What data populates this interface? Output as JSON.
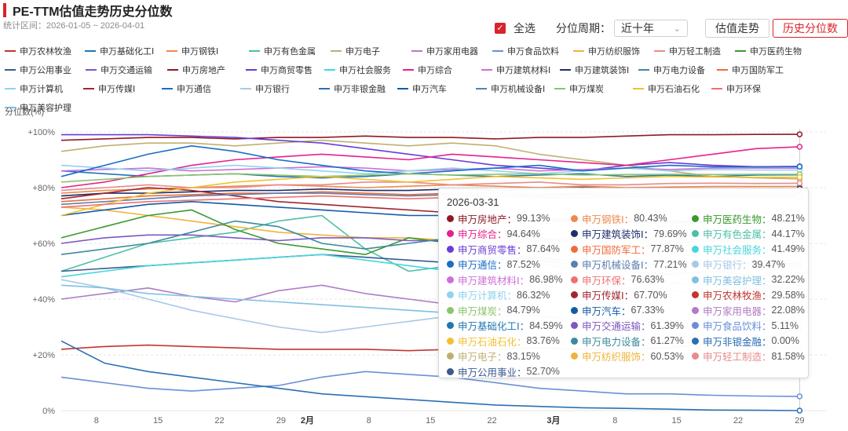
{
  "title": "PE-TTM估值走势历史分位数",
  "range_text": "统计区间：2026-01-05 ~ 2026-04-01",
  "controls": {
    "select_all_label": "全选",
    "period_label": "分位周期：",
    "period_value": "近十年",
    "tab_valuation": "估值走势",
    "tab_percentile": "历史分位数"
  },
  "tooltip_date": "2026-03-31",
  "chart_data": {
    "type": "line",
    "title": "PE-TTM估值走势历史分位数",
    "ylabel": "分位数(%)",
    "ylim": [
      0,
      100
    ],
    "yticks": [
      "0%",
      "+20%",
      "+40%",
      "+60%",
      "+80%",
      "+100%"
    ],
    "xlabels": [
      {
        "label": "8",
        "day": 4
      },
      {
        "label": "15",
        "day": 11
      },
      {
        "label": "22",
        "day": 18
      },
      {
        "label": "29",
        "day": 25
      },
      {
        "label": "2月",
        "day": 28,
        "bold": true
      },
      {
        "label": "8",
        "day": 35
      },
      {
        "label": "15",
        "day": 42
      },
      {
        "label": "22",
        "day": 49
      },
      {
        "label": "3月",
        "day": 56,
        "bold": true
      },
      {
        "label": "8",
        "day": 63
      },
      {
        "label": "15",
        "day": 70
      },
      {
        "label": "22",
        "day": 77
      },
      {
        "label": "29",
        "day": 84
      }
    ],
    "x_start": "2026-01-05",
    "x_end": "2026-04-01",
    "grid": true,
    "series": [
      {
        "name": "申万农林牧渔",
        "color": "#c23531",
        "values": [
          22,
          23,
          23.5,
          23,
          22.5,
          22,
          22,
          22,
          21.5,
          22,
          22,
          22.5,
          22,
          22,
          22.5,
          24,
          25,
          29.58
        ]
      },
      {
        "name": "申万基础化工Ⅰ",
        "color": "#1f77b4",
        "values": [
          86,
          85,
          84,
          84.5,
          85,
          84,
          83.5,
          84,
          85,
          84.5,
          84,
          84.5,
          85,
          84,
          84.5,
          84,
          84.5,
          84.59
        ]
      },
      {
        "name": "申万钢铁Ⅰ",
        "color": "#ee8a4b",
        "values": [
          78,
          79,
          79.5,
          80,
          80.5,
          81,
          80.5,
          80,
          80.5,
          81,
          80.5,
          80,
          80.5,
          80,
          80.2,
          80.4,
          80.4,
          80.43
        ]
      },
      {
        "name": "申万有色金属",
        "color": "#4dbfa8",
        "values": [
          50,
          55,
          60,
          62,
          64,
          68,
          70,
          58,
          50,
          52,
          55,
          53,
          50,
          47,
          46,
          45,
          44.5,
          44.17
        ]
      },
      {
        "name": "申万电子",
        "color": "#c0b070",
        "values": [
          93,
          95,
          96,
          96,
          95,
          96,
          97,
          96,
          95,
          96,
          95,
          92,
          90,
          88,
          86,
          84,
          83.5,
          83.15
        ]
      },
      {
        "name": "申万家用电器",
        "color": "#b07cc6",
        "values": [
          40,
          42,
          44,
          41,
          39,
          43,
          45,
          42,
          40,
          38,
          36,
          34,
          32,
          30,
          28,
          25,
          23,
          22.08
        ]
      },
      {
        "name": "申万食品饮料",
        "color": "#6a8fd8",
        "values": [
          12,
          10,
          8,
          7,
          8,
          9,
          12,
          14,
          13,
          12,
          10,
          8,
          7,
          6,
          6,
          5.5,
          5.2,
          5.11
        ]
      },
      {
        "name": "申万纺织服饰",
        "color": "#f0b43c",
        "values": [
          73,
          72,
          70,
          68,
          66,
          64,
          63,
          62,
          62,
          61,
          61,
          62,
          61,
          60,
          60.5,
          60.8,
          60.5,
          60.53
        ]
      },
      {
        "name": "申万轻工制造",
        "color": "#e78b8b",
        "values": [
          79,
          80,
          81,
          80,
          80,
          81,
          81,
          82,
          82,
          81,
          81.5,
          82,
          81,
          81,
          81.5,
          81.6,
          81.5,
          81.58
        ]
      },
      {
        "name": "申万医药生物",
        "color": "#3a9a2e",
        "values": [
          62,
          66,
          70,
          72,
          65,
          60,
          58,
          56,
          62,
          60,
          58,
          54,
          52,
          50,
          49,
          50,
          48.5,
          48.21
        ]
      },
      {
        "name": "申万公用事业",
        "color": "#3b5a8f",
        "values": [
          50,
          51,
          52,
          53,
          54,
          55,
          56,
          55,
          54,
          53,
          54,
          55,
          53,
          52,
          53,
          52.5,
          52.8,
          52.7
        ]
      },
      {
        "name": "申万交通运输",
        "color": "#7e57c2",
        "values": [
          60,
          62,
          63,
          63,
          62,
          61,
          62,
          62,
          61,
          61,
          60,
          61,
          62,
          61,
          61,
          61.5,
          61.3,
          61.39
        ]
      },
      {
        "name": "申万房地产",
        "color": "#8e1a24",
        "values": [
          97,
          97.5,
          98,
          98,
          97.5,
          98,
          98,
          98.5,
          98,
          98,
          97.5,
          98,
          98,
          98.5,
          99,
          99,
          99.1,
          99.13
        ]
      },
      {
        "name": "申万商贸零售",
        "color": "#6a3cd6",
        "values": [
          99,
          99,
          99,
          98.5,
          98,
          97,
          96,
          94,
          92,
          90,
          88,
          87,
          86,
          88,
          89,
          88,
          87.5,
          87.64
        ]
      },
      {
        "name": "申万社会服务",
        "color": "#45d6de",
        "values": [
          48,
          50,
          52,
          53,
          54,
          55,
          56,
          54,
          52,
          50,
          48,
          46,
          45,
          44,
          43,
          42,
          41.5,
          41.49
        ]
      },
      {
        "name": "申万综合",
        "color": "#e6218c",
        "values": [
          80,
          82,
          85,
          88,
          90,
          91,
          92,
          91,
          90,
          92,
          91,
          90,
          89,
          88,
          90,
          92,
          94,
          94.64
        ]
      },
      {
        "name": "申万建筑材料Ⅰ",
        "color": "#cf6fd8",
        "values": [
          86,
          86.5,
          87,
          86,
          86.5,
          87,
          87.5,
          87,
          86,
          86.5,
          87,
          86,
          86.5,
          87,
          86.5,
          87,
          87,
          86.98
        ]
      },
      {
        "name": "申万建筑装饰Ⅰ",
        "color": "#1e2f6b",
        "values": [
          77,
          78,
          78,
          78.5,
          79,
          79,
          79.5,
          79,
          79,
          79.5,
          79,
          79.5,
          80,
          79.5,
          79.8,
          79.6,
          79.7,
          79.69
        ]
      },
      {
        "name": "申万电力设备",
        "color": "#3d8a9e",
        "values": [
          56,
          58,
          60,
          64,
          68,
          66,
          60,
          58,
          60,
          62,
          64,
          62,
          60,
          58,
          60,
          61,
          61.2,
          61.27
        ]
      },
      {
        "name": "申万国防军工",
        "color": "#f06b3a",
        "values": [
          75,
          76,
          77,
          77.5,
          78,
          78,
          78.5,
          78,
          77.5,
          78,
          78,
          77.5,
          78,
          77.8,
          77.9,
          77.8,
          77.9,
          77.87
        ]
      },
      {
        "name": "申万计算机",
        "color": "#8fd3ee",
        "values": [
          88,
          87,
          86,
          87,
          88,
          87,
          86,
          85,
          86,
          87,
          86,
          85,
          86,
          87,
          86,
          86.5,
          86.3,
          86.32
        ]
      },
      {
        "name": "申万传媒Ⅰ",
        "color": "#a02630",
        "values": [
          76,
          78,
          80,
          79,
          77,
          75,
          74,
          73,
          72,
          71,
          70,
          69,
          68.5,
          68,
          68,
          67.8,
          67.7,
          67.7
        ]
      },
      {
        "name": "申万通信",
        "color": "#1a6dc8",
        "values": [
          84,
          88,
          92,
          95,
          93,
          90,
          88,
          86,
          85,
          86,
          87,
          88,
          86,
          87,
          88,
          87.5,
          87.5,
          87.52
        ]
      },
      {
        "name": "申万银行",
        "color": "#a8c8e8",
        "values": [
          47,
          44,
          40,
          36,
          33,
          30,
          28,
          30,
          32,
          34,
          36,
          37,
          38,
          39,
          39.5,
          39.4,
          39.5,
          39.47
        ]
      },
      {
        "name": "申万非银金融",
        "color": "#2a6fb5",
        "values": [
          25,
          17,
          14,
          12,
          10,
          8,
          6,
          5,
          4,
          3,
          2,
          1.5,
          1,
          0.8,
          0.5,
          0.2,
          0.1,
          0
        ]
      },
      {
        "name": "申万汽车",
        "color": "#135aa8",
        "values": [
          70,
          72,
          74,
          75,
          74,
          73,
          72,
          71,
          70,
          70,
          69,
          68,
          68,
          67.5,
          67.4,
          67.3,
          67.3,
          67.33
        ]
      },
      {
        "name": "申万机械设备Ⅰ",
        "color": "#5a7fb0",
        "values": [
          74,
          75,
          76,
          77,
          77.5,
          78,
          78,
          77.5,
          77,
          77.5,
          77,
          77.2,
          77.5,
          77,
          77.2,
          77.3,
          77.2,
          77.21
        ]
      },
      {
        "name": "申万煤炭",
        "color": "#8cc46a",
        "values": [
          82,
          83,
          84,
          84.5,
          85,
          84.5,
          84,
          84.5,
          85,
          84.5,
          84.8,
          85,
          84.5,
          84.7,
          84.8,
          84.7,
          84.8,
          84.79
        ]
      },
      {
        "name": "申万石油石化",
        "color": "#f2c030",
        "values": [
          70,
          74,
          78,
          80,
          82,
          83,
          84,
          83,
          82,
          83,
          84,
          83.5,
          83,
          83.5,
          84,
          83.8,
          83.7,
          83.76
        ]
      },
      {
        "name": "申万环保",
        "color": "#f07070",
        "values": [
          73,
          74,
          75,
          75.5,
          76,
          76.5,
          77,
          76.5,
          76,
          76.5,
          77,
          76.5,
          76.5,
          76.8,
          76.6,
          76.6,
          76.6,
          76.63
        ]
      },
      {
        "name": "申万美容护理",
        "color": "#80c0e0",
        "values": [
          45,
          44,
          42,
          41,
          40,
          39,
          38,
          37,
          36,
          35,
          34,
          34,
          33,
          33,
          32.5,
          32.4,
          32.3,
          32.22
        ]
      }
    ]
  },
  "tooltip_rows": [
    {
      "name": "申万房地产",
      "value": "99.13%",
      "color": "#8e1a24"
    },
    {
      "name": "申万钢铁Ⅰ",
      "value": "80.43%",
      "color": "#ee8a4b"
    },
    {
      "name": "申万医药生物",
      "value": "48.21%",
      "color": "#3a9a2e"
    },
    {
      "name": "申万综合",
      "value": "94.64%",
      "color": "#e6218c"
    },
    {
      "name": "申万建筑装饰Ⅰ",
      "value": "79.69%",
      "color": "#1e2f6b"
    },
    {
      "name": "申万有色金属",
      "value": "44.17%",
      "color": "#4dbfa8"
    },
    {
      "name": "申万商贸零售",
      "value": "87.64%",
      "color": "#6a3cd6"
    },
    {
      "name": "申万国防军工",
      "value": "77.87%",
      "color": "#f06b3a"
    },
    {
      "name": "申万社会服务",
      "value": "41.49%",
      "color": "#45d6de"
    },
    {
      "name": "申万通信",
      "value": "87.52%",
      "color": "#1a6dc8"
    },
    {
      "name": "申万机械设备Ⅰ",
      "value": "77.21%",
      "color": "#5a7fb0"
    },
    {
      "name": "申万银行",
      "value": "39.47%",
      "color": "#a8c8e8"
    },
    {
      "name": "申万建筑材料Ⅰ",
      "value": "86.98%",
      "color": "#cf6fd8"
    },
    {
      "name": "申万环保",
      "value": "76.63%",
      "color": "#f07070"
    },
    {
      "name": "申万美容护理",
      "value": "32.22%",
      "color": "#80c0e0"
    },
    {
      "name": "申万计算机",
      "value": "86.32%",
      "color": "#8fd3ee"
    },
    {
      "name": "申万传媒Ⅰ",
      "value": "67.70%",
      "color": "#a02630"
    },
    {
      "name": "申万农林牧渔",
      "value": "29.58%",
      "color": "#c23531"
    },
    {
      "name": "申万煤炭",
      "value": "84.79%",
      "color": "#8cc46a"
    },
    {
      "name": "申万汽车",
      "value": "67.33%",
      "color": "#135aa8"
    },
    {
      "name": "申万家用电器",
      "value": "22.08%",
      "color": "#b07cc6"
    },
    {
      "name": "申万基础化工Ⅰ",
      "value": "84.59%",
      "color": "#1f77b4"
    },
    {
      "name": "申万交通运输",
      "value": "61.39%",
      "color": "#7e57c2"
    },
    {
      "name": "申万食品饮料",
      "value": "5.11%",
      "color": "#6a8fd8"
    },
    {
      "name": "申万石油石化",
      "value": "83.76%",
      "color": "#f2c030"
    },
    {
      "name": "申万电力设备",
      "value": "61.27%",
      "color": "#3d8a9e"
    },
    {
      "name": "申万非银金融",
      "value": "0.00%",
      "color": "#2a6fb5"
    },
    {
      "name": "申万电子",
      "value": "83.15%",
      "color": "#c0b070"
    },
    {
      "name": "申万纺织服饰",
      "value": "60.53%",
      "color": "#f0b43c"
    },
    {
      "name": "申万轻工制造",
      "value": "81.58%",
      "color": "#e78b8b"
    },
    {
      "name": "申万公用事业",
      "value": "52.70%",
      "color": "#3b5a8f"
    }
  ]
}
